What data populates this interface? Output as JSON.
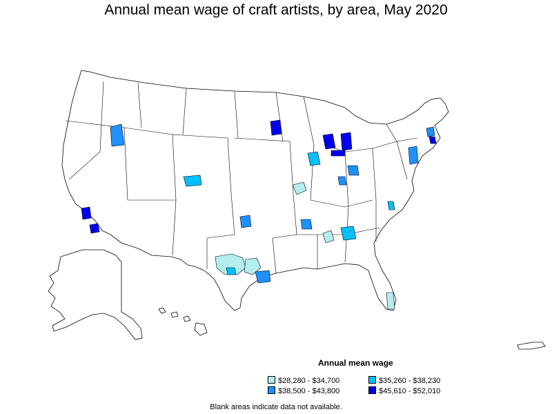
{
  "title": "Annual mean wage of craft artists, by area, May 2020",
  "legend": {
    "title": "Annual mean wage",
    "items": [
      {
        "label": "$28,280 - $34,700",
        "color": "#b2eeee"
      },
      {
        "label": "$35,260 - $38,230",
        "color": "#00bfff"
      },
      {
        "label": "$38,500 - $43,800",
        "color": "#1e90ff"
      },
      {
        "label": "$45,610 - $52,010",
        "color": "#0000ee"
      }
    ]
  },
  "footnote": "Blank areas indicate data not available."
}
